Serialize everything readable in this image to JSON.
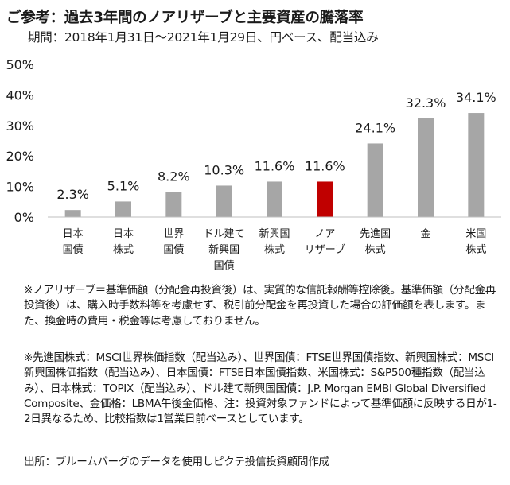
{
  "header": {
    "title": "ご参考：過去3年間のノアリザーブと主要資産の騰落率",
    "subtitle": "期間：2018年1月31日～2021年1月29日、円ベース、配当込み"
  },
  "chart_data": {
    "type": "bar",
    "categories": [
      [
        "日本",
        "国債"
      ],
      [
        "日本",
        "株式"
      ],
      [
        "世界",
        "国債"
      ],
      [
        "ドル建て",
        "新興国",
        "国債"
      ],
      [
        "新興国",
        "株式"
      ],
      [
        "ノア",
        "リザーブ"
      ],
      [
        "先進国",
        "株式"
      ],
      [
        "金"
      ],
      [
        "米国",
        "株式"
      ]
    ],
    "values": [
      2.3,
      5.1,
      8.2,
      10.3,
      11.6,
      11.6,
      24.1,
      32.3,
      34.1
    ],
    "value_labels": [
      "2.3%",
      "5.1%",
      "8.2%",
      "10.3%",
      "11.6%",
      "11.6%",
      "24.1%",
      "32.3%",
      "34.1%"
    ],
    "yticks": [
      "0%",
      "10%",
      "20%",
      "30%",
      "40%",
      "50%"
    ],
    "ylim": [
      0,
      50
    ],
    "grid": false,
    "colors": {
      "default": "#a6a6a6",
      "highlight": "#c00000"
    },
    "highlight_index": 5
  },
  "notes": {
    "note1": "※ノアリザーブ＝基準価額（分配金再投資後）は、実質的な信託報酬等控除後。基準価額（分配金再投資後）は、購入時手数料等を考慮せず、税引前分配金を再投資した場合の評価額を表します。また、換金時の費用・税金等は考慮しておりません。",
    "note2": "※先進国株式：MSCI世界株価指数（配当込み）、世界国債：FTSE世界国債指数、新興国株式：MSCI新興国株価指数（配当込み）、日本国債：FTSE日本国債指数、米国株式：S&P500種指数（配当込み）、日本株式：TOPIX（配当込み）、ドル建て新興国国債：J.P. Morgan EMBI Global Diversified Composite、金価格：LBMA午後金価格、注：投資対象ファンドによって基準価額に反映する日が1-2日異なるため、比較指数は1営業日前ベースとしています。",
    "source": "出所：ブルームバーグのデータを使用しピクテ投信投資顧問作成"
  }
}
